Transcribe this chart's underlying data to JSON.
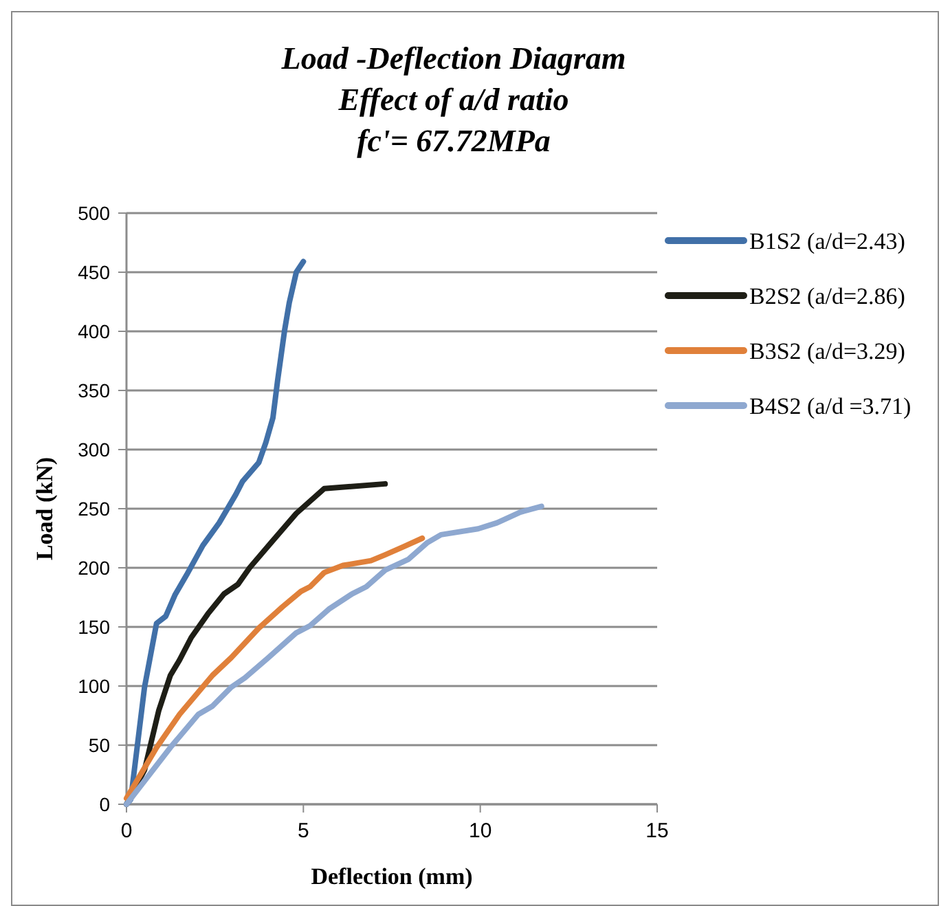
{
  "chart_data": {
    "type": "line",
    "title": "Load -Deflection Diagram\nEffect of a/d ratio\nfc'= 67.72MPa",
    "xlabel": "Deflection (mm)",
    "ylabel": "Load (kN)",
    "xlim": [
      0,
      15
    ],
    "xticks": [
      0,
      5,
      10,
      15
    ],
    "ylim": [
      0,
      500
    ],
    "yticks": [
      0,
      50,
      100,
      150,
      200,
      250,
      300,
      350,
      400,
      450,
      500
    ],
    "grid": "y",
    "legend": "right",
    "marker": "none",
    "line_style": "solid",
    "series": [
      {
        "name": "B1S2 (a/d=2.43)",
        "color": "#4170a8",
        "x": [
          0,
          0.12,
          0.51,
          0.85,
          1.11,
          1.37,
          1.7,
          2.16,
          2.62,
          3.09,
          3.28,
          3.74,
          3.94,
          4.14,
          4.27,
          4.47,
          4.6,
          4.8,
          5.0
        ],
        "values": [
          0,
          4,
          99,
          153,
          159,
          177,
          194,
          219,
          238,
          262,
          273,
          289,
          306,
          327,
          358,
          401,
          424,
          450,
          459
        ]
      },
      {
        "name": "B2S2 (a/d=2.86)",
        "color": "#1e1e16",
        "x": [
          0,
          0.51,
          0.91,
          1.24,
          1.5,
          1.83,
          2.3,
          2.76,
          3.15,
          3.48,
          4.08,
          4.8,
          5.59,
          7.31
        ],
        "values": [
          0,
          29,
          79,
          109,
          122,
          141,
          161,
          178,
          186,
          200,
          221,
          246,
          267,
          271
        ]
      },
      {
        "name": "B3S2 (a/d=3.29)",
        "color": "#e0803a",
        "x": [
          0,
          0.85,
          1.5,
          2.43,
          2.96,
          3.74,
          4.41,
          4.93,
          5.19,
          5.59,
          6.12,
          6.91,
          7.31,
          7.84,
          8.36
        ],
        "values": [
          5,
          48,
          76,
          109,
          124,
          149,
          167,
          180,
          184,
          196,
          202,
          206,
          211,
          218,
          225
        ]
      },
      {
        "name": "B4S2 (a/d =3.71)",
        "color": "#8ea8d0",
        "x": [
          0,
          1.24,
          2.03,
          2.43,
          2.96,
          3.35,
          4.01,
          4.8,
          5.19,
          5.72,
          6.38,
          6.78,
          7.31,
          7.96,
          8.49,
          8.89,
          9.94,
          10.47,
          11.13,
          11.73
        ],
        "values": [
          0,
          48,
          76,
          83,
          99,
          107,
          124,
          145,
          151,
          165,
          178,
          184,
          198,
          207,
          221,
          228,
          233,
          238,
          247,
          252
        ]
      }
    ]
  }
}
